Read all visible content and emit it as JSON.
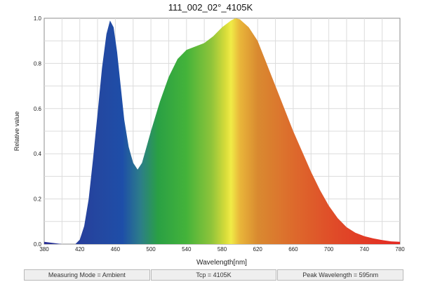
{
  "chart_data": {
    "type": "area",
    "title": "111_002_02°_4105K",
    "xlabel": "Wavelength[nm]",
    "ylabel": "Relative value",
    "xlim": [
      380,
      780
    ],
    "ylim": [
      0,
      1.0
    ],
    "xticks": [
      "380",
      "420",
      "460",
      "500",
      "540",
      "580",
      "620",
      "660",
      "700",
      "740",
      "780"
    ],
    "yticks": [
      "0.0",
      "0.2",
      "0.4",
      "0.6",
      "0.8",
      "1.0"
    ],
    "grid": true,
    "series": [
      {
        "values": [
          [
            380,
            0.01
          ],
          [
            400,
            0.0
          ],
          [
            415,
            0.0
          ],
          [
            420,
            0.02
          ],
          [
            425,
            0.08
          ],
          [
            430,
            0.2
          ],
          [
            435,
            0.38
          ],
          [
            440,
            0.58
          ],
          [
            445,
            0.78
          ],
          [
            450,
            0.93
          ],
          [
            454,
            0.99
          ],
          [
            458,
            0.96
          ],
          [
            462,
            0.85
          ],
          [
            466,
            0.7
          ],
          [
            470,
            0.55
          ],
          [
            475,
            0.43
          ],
          [
            480,
            0.36
          ],
          [
            485,
            0.33
          ],
          [
            490,
            0.36
          ],
          [
            495,
            0.43
          ],
          [
            500,
            0.5
          ],
          [
            510,
            0.63
          ],
          [
            520,
            0.74
          ],
          [
            530,
            0.82
          ],
          [
            540,
            0.86
          ],
          [
            550,
            0.875
          ],
          [
            560,
            0.89
          ],
          [
            570,
            0.92
          ],
          [
            580,
            0.96
          ],
          [
            590,
            0.99
          ],
          [
            595,
            1.0
          ],
          [
            600,
            0.995
          ],
          [
            610,
            0.96
          ],
          [
            620,
            0.9
          ],
          [
            630,
            0.8
          ],
          [
            640,
            0.7
          ],
          [
            650,
            0.6
          ],
          [
            660,
            0.5
          ],
          [
            670,
            0.41
          ],
          [
            680,
            0.32
          ],
          [
            690,
            0.24
          ],
          [
            700,
            0.17
          ],
          [
            710,
            0.115
          ],
          [
            720,
            0.075
          ],
          [
            730,
            0.05
          ],
          [
            740,
            0.035
          ],
          [
            750,
            0.025
          ],
          [
            760,
            0.018
          ],
          [
            770,
            0.012
          ],
          [
            780,
            0.01
          ]
        ]
      }
    ]
  },
  "status": {
    "measuring_mode": "Measuring Mode = Ambient",
    "tcp": "Tcp = 4105K",
    "peak": "Peak Wavelength = 595nm"
  }
}
